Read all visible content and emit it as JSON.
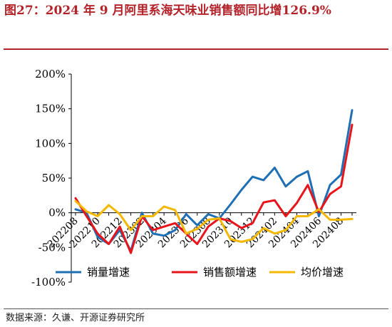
{
  "header": {
    "title": "图27：2024 年 9 月阿里系海天味业销售额同比增126.9%"
  },
  "footer": {
    "source": "数据来源：久谦、开源证券研究所"
  },
  "chart_data": {
    "type": "line",
    "title": "",
    "xlabel": "",
    "ylabel": "",
    "ylim": [
      -100,
      200
    ],
    "yticks": [
      -100,
      -50,
      0,
      50,
      100,
      150,
      200
    ],
    "ytick_labels": [
      "-100%",
      "-50%",
      "0%",
      "50%",
      "100%",
      "150%",
      "200%"
    ],
    "x": [
      "202208",
      "202209",
      "202210",
      "202211",
      "202212",
      "202301",
      "202302",
      "202303",
      "202304",
      "202305",
      "202306",
      "202307",
      "202308",
      "202309",
      "202310",
      "202311",
      "202312",
      "202401",
      "202402",
      "202403",
      "202404",
      "202405",
      "202406",
      "202407",
      "202408",
      "202409"
    ],
    "xtick_labels": [
      "202208",
      "202210",
      "202212",
      "202302",
      "202304",
      "202306",
      "202308",
      "202310",
      "202312",
      "202402",
      "202404",
      "202406",
      "202408"
    ],
    "legend_position": "bottom",
    "grid": false,
    "series": [
      {
        "name": "销量增速",
        "color": "#1f6fb5",
        "values": [
          5,
          0,
          -35,
          -45,
          -25,
          -55,
          0,
          -30,
          -33,
          -25,
          -2,
          -18,
          -2,
          -8,
          12,
          33,
          52,
          47,
          65,
          38,
          52,
          60,
          -5,
          40,
          55,
          148
        ]
      },
      {
        "name": "销售额增速",
        "color": "#e8141b",
        "values": [
          21,
          -5,
          -30,
          -45,
          -20,
          -58,
          -5,
          -25,
          -20,
          -15,
          -30,
          -45,
          -20,
          -8,
          -12,
          -22,
          -15,
          15,
          18,
          -5,
          14,
          40,
          1,
          27,
          38,
          127
        ]
      },
      {
        "name": "均价增速",
        "color": "#f5b800",
        "values": [
          17,
          2,
          -5,
          11,
          -2,
          -25,
          -5,
          -5,
          9,
          4,
          -30,
          -23,
          -10,
          -8,
          -38,
          -42,
          -38,
          -22,
          -30,
          -25,
          -5,
          -5,
          5,
          -10,
          -10,
          -9
        ]
      }
    ]
  }
}
